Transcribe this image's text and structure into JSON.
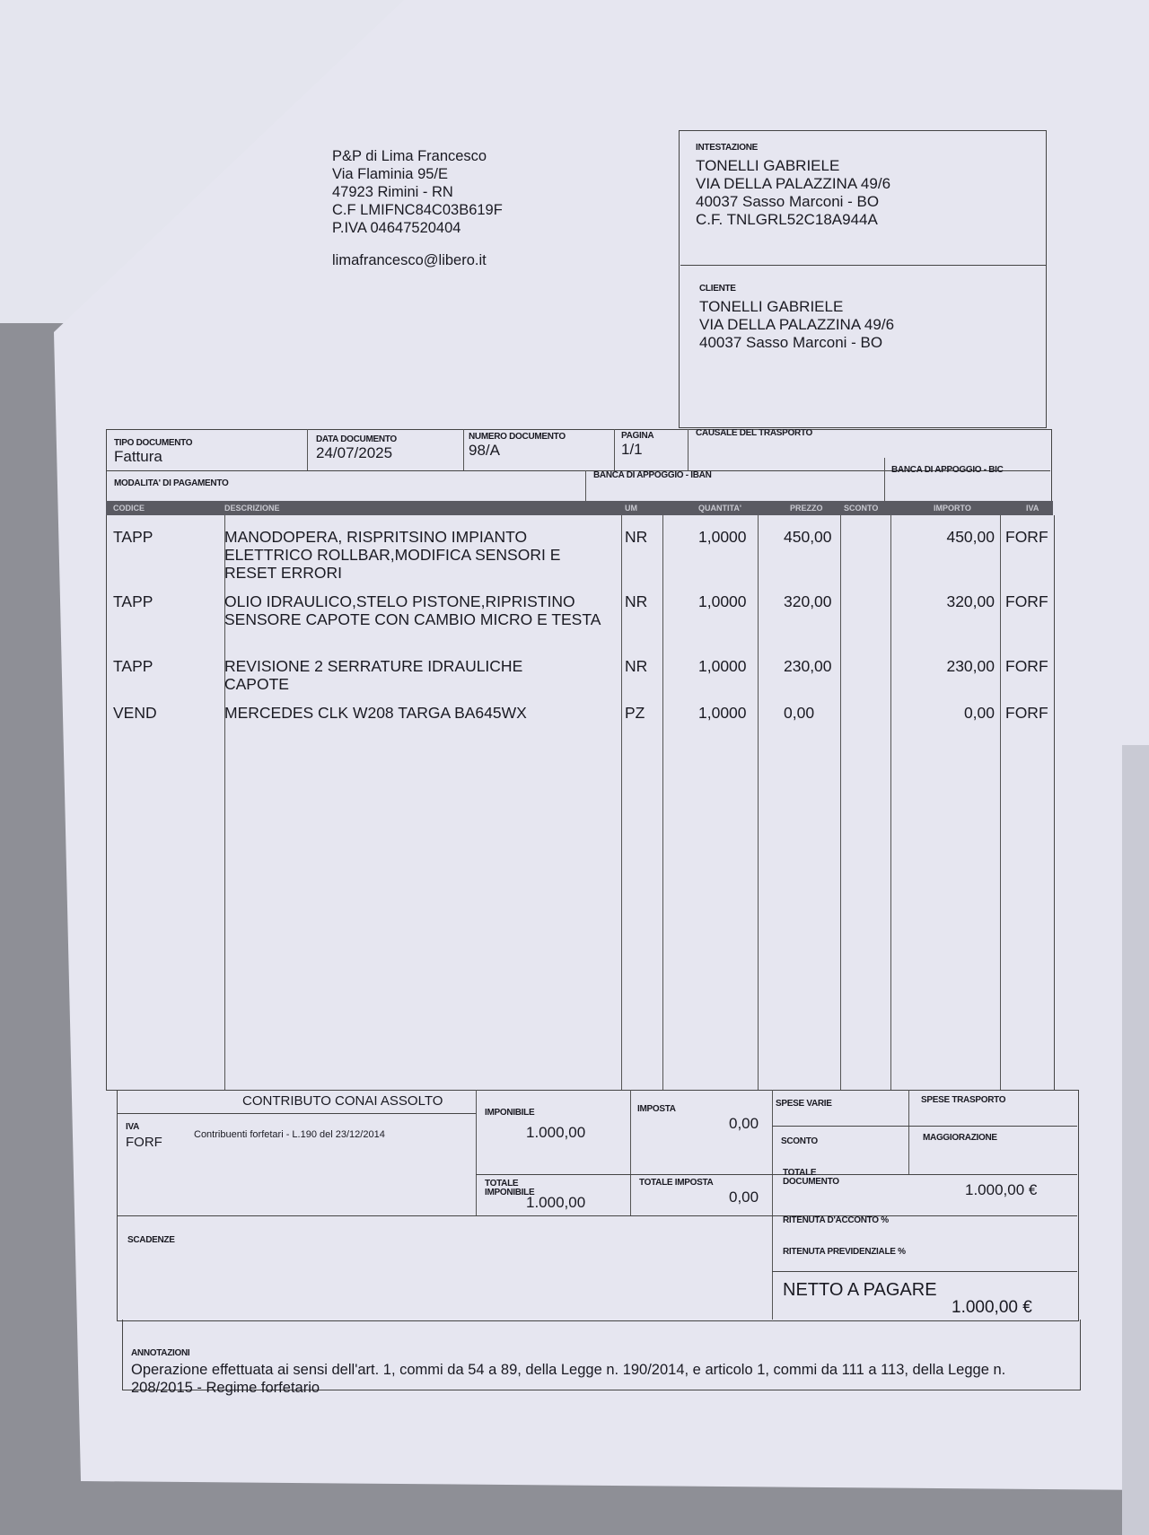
{
  "issuer": {
    "name": "P&P di Lima Francesco",
    "address": "Via Flaminia 95/E",
    "city": "47923 Rimini - RN",
    "cf": "C.F LMIFNC84C03B619F",
    "piva": "P.IVA 04647520404",
    "email": "limafrancesco@libero.it"
  },
  "intestazione": {
    "label": "INTESTAZIONE",
    "name": "TONELLI  GABRIELE",
    "address": "VIA DELLA PALAZZINA 49/6",
    "city": "40037 Sasso Marconi - BO",
    "cf": "C.F. TNLGRL52C18A944A"
  },
  "cliente": {
    "label": "CLIENTE",
    "name": "TONELLI  GABRIELE",
    "address": "VIA DELLA PALAZZINA 49/6",
    "city": "40037 Sasso Marconi - BO"
  },
  "doc": {
    "tipo_label": "TIPO DOCUMENTO",
    "tipo": "Fattura",
    "data_label": "DATA DOCUMENTO",
    "data": "24/07/2025",
    "numero_label": "NUMERO DOCUMENTO",
    "numero": "98/A",
    "pagina_label": "PAGINA",
    "pagina": "1/1",
    "causale_label": "CAUSALE DEL TRASPORTO",
    "modalita_label": "MODALITA' DI PAGAMENTO",
    "iban_label": "BANCA DI APPOGGIO - IBAN",
    "bic_label": "BANCA DI APPOGGIO - BIC"
  },
  "table": {
    "headers": [
      "CODICE",
      "DESCRIZIONE",
      "UM",
      "QUANTITA'",
      "PREZZO",
      "SCONTO",
      "IMPORTO",
      "IVA"
    ],
    "rows": [
      {
        "codice": "TAPP",
        "descrizione": "MANODOPERA, RISPRITSINO IMPIANTO ELETTRICO ROLLBAR,MODIFICA SENSORI E RESET ERRORI",
        "um": "NR",
        "quantita": "1,0000",
        "prezzo": "450,00",
        "importo": "450,00",
        "iva": "FORF"
      },
      {
        "codice": "TAPP",
        "descrizione": "OLIO IDRAULICO,STELO PISTONE,RIPRISTINO SENSORE CAPOTE CON CAMBIO MICRO E TESTA",
        "um": "NR",
        "quantita": "1,0000",
        "prezzo": "320,00",
        "importo": "320,00",
        "iva": "FORF"
      },
      {
        "codice": "TAPP",
        "descrizione": "REVISIONE 2 SERRATURE IDRAULICHE CAPOTE",
        "um": "NR",
        "quantita": "1,0000",
        "prezzo": "230,00",
        "importo": "230,00",
        "iva": "FORF"
      },
      {
        "codice": "VEND",
        "descrizione": "MERCEDES CLK W208 TARGA BA645WX",
        "um": "PZ",
        "quantita": "1,0000",
        "prezzo": "0,00",
        "importo": "0,00",
        "iva": "FORF"
      }
    ],
    "conai": "CONTRIBUTO CONAI ASSOLTO"
  },
  "summary": {
    "iva_label": "IVA",
    "iva_code": "FORF",
    "iva_desc": "Contribuenti forfetari - L.190 del 23/12/2014",
    "imponibile_label": "IMPONIBILE",
    "imponibile": "1.000,00",
    "imposta_label": "IMPOSTA",
    "imposta": "0,00",
    "spese_varie_label": "SPESE VARIE",
    "spese_trasporto_label": "SPESE TRASPORTO",
    "sconto_label": "SCONTO",
    "maggiorazione_label": "MAGGIORAZIONE",
    "totale_imponibile_label": "TOTALE IMPONIBILE",
    "totale_imponibile": "1.000,00",
    "totale_imposta_label": "TOTALE IMPOSTA",
    "totale_imposta": "0,00",
    "totale_documento_label": "TOTALE DOCUMENTO",
    "totale_documento": "1.000,00 €",
    "ritenuta_acconto_label": "RITENUTA D'ACCONTO %",
    "ritenuta_prev_label": "RITENUTA PREVIDENZIALE %",
    "scadenze_label": "SCADENZE",
    "netto_label": "NETTO A PAGARE",
    "netto": "1.000,00 €"
  },
  "annotazioni": {
    "label": "ANNOTAZIONI",
    "text": "Operazione effettuata ai sensi dell'art. 1, commi da 54 a 89, della Legge n. 190/2014, e articolo 1, commi da 111 a 113, della Legge n. 208/2015 - Regime forfetario"
  }
}
